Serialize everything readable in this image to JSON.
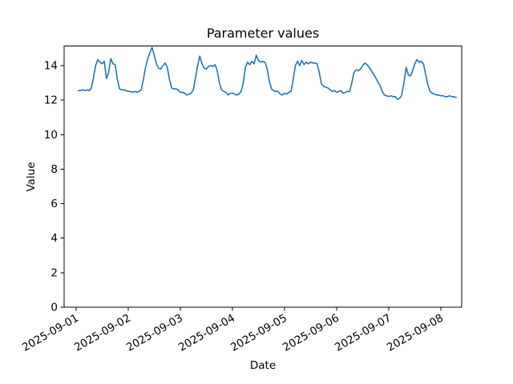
{
  "chart_data": {
    "type": "line",
    "title": "Parameter values",
    "xlabel": "Date",
    "ylabel": "Value",
    "grid": false,
    "legend": "none",
    "line_color": "#1f77b4",
    "x_ticks": [
      "2025-09-01",
      "2025-09-02",
      "2025-09-03",
      "2025-09-04",
      "2025-09-05",
      "2025-09-06",
      "2025-09-07",
      "2025-09-08"
    ],
    "y_ticks": [
      0,
      2,
      4,
      6,
      8,
      10,
      12,
      14
    ],
    "ylim": [
      0,
      15.13
    ],
    "xlim_hours": [
      -5.5,
      177.6
    ],
    "series": [
      {
        "name": "parameter-values",
        "color": "#1f77b4",
        "start": "2025-09-01 01:00",
        "start_hour": 1,
        "step_hours": 1,
        "values": [
          12.55,
          12.55,
          12.6,
          12.55,
          12.6,
          12.55,
          12.7,
          13.3,
          14.0,
          14.35,
          14.2,
          14.1,
          14.25,
          13.25,
          13.6,
          14.4,
          14.1,
          14.05,
          13.2,
          12.65,
          12.6,
          12.6,
          12.55,
          12.5,
          12.5,
          12.45,
          12.5,
          12.45,
          12.5,
          12.6,
          13.2,
          13.9,
          14.4,
          14.75,
          15.05,
          14.6,
          14.1,
          13.85,
          13.8,
          14.0,
          14.15,
          13.9,
          13.2,
          12.7,
          12.65,
          12.65,
          12.6,
          12.45,
          12.45,
          12.4,
          12.3,
          12.35,
          12.4,
          12.6,
          13.3,
          14.0,
          14.55,
          14.1,
          13.85,
          13.8,
          13.95,
          14.0,
          13.95,
          14.05,
          13.7,
          13.0,
          12.6,
          12.5,
          12.45,
          12.3,
          12.4,
          12.4,
          12.35,
          12.3,
          12.35,
          12.5,
          13.0,
          13.9,
          14.2,
          14.05,
          14.25,
          14.1,
          14.6,
          14.3,
          14.2,
          14.25,
          14.2,
          13.8,
          13.1,
          12.65,
          12.55,
          12.5,
          12.5,
          12.35,
          12.3,
          12.4,
          12.35,
          12.45,
          12.5,
          13.2,
          14.0,
          14.25,
          14.0,
          14.3,
          14.05,
          14.2,
          14.1,
          14.2,
          14.15,
          14.15,
          14.1,
          13.6,
          12.95,
          12.8,
          12.75,
          12.7,
          12.6,
          12.5,
          12.55,
          12.45,
          12.5,
          12.55,
          12.4,
          12.45,
          12.5,
          12.5,
          13.0,
          13.6,
          13.75,
          13.7,
          13.8,
          14.0,
          14.15,
          14.05,
          13.9,
          13.7,
          13.5,
          13.3,
          13.05,
          12.85,
          12.5,
          12.3,
          12.25,
          12.2,
          12.25,
          12.2,
          12.2,
          12.05,
          12.1,
          12.3,
          13.0,
          13.9,
          13.45,
          13.4,
          13.7,
          14.1,
          14.35,
          14.2,
          14.25,
          14.1,
          13.5,
          12.9,
          12.5,
          12.4,
          12.35,
          12.3,
          12.3,
          12.25,
          12.25,
          12.2,
          12.2,
          12.25,
          12.2,
          12.2,
          12.15
        ]
      }
    ]
  }
}
